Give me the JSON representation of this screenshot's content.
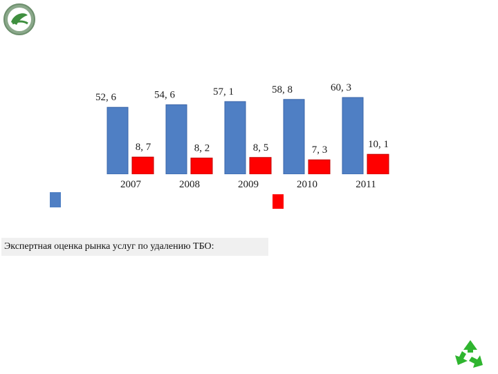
{
  "colors": {
    "series_a": "#4f7fc4",
    "series_b": "#ff0000",
    "bar_edge_a": "#3a64a8",
    "bar_edge_b": "#c00000"
  },
  "logo_icon": "eco-leaf-logo-icon",
  "recycle_icon": "recycle-arrows-icon",
  "caption": "Экспертная оценка рынка услуг по удалению ТБО:",
  "chart_data": {
    "type": "bar",
    "categories": [
      "2007",
      "2008",
      "2009",
      "2010",
      "2011"
    ],
    "series": [
      {
        "values": [
          52.6,
          54.6,
          57.1,
          58.8,
          60.3
        ],
        "labels": [
          "52, 6",
          "54, 6",
          "57, 1",
          "58, 8",
          "60, 3"
        ]
      },
      {
        "values": [
          8.7,
          8.2,
          8.5,
          7.3,
          10.1
        ],
        "labels": [
          "8, 7",
          "8, 2",
          "8, 5",
          "7, 3",
          "10, 1"
        ]
      }
    ],
    "ylim": [
      0,
      70
    ],
    "grid": false,
    "legend": "below-chart"
  }
}
